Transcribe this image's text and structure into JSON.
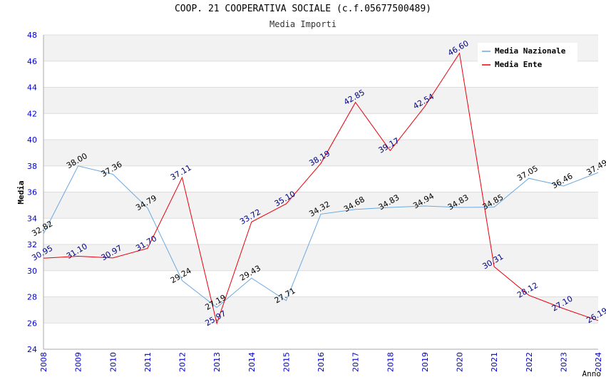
{
  "chart_data": {
    "type": "line",
    "title": "COOP. 21 COOPERATIVA SOCIALE (c.f.05677500489)",
    "subtitle": "Media Importi",
    "xlabel": "Anno",
    "ylabel": "Media",
    "ylim": [
      24,
      48
    ],
    "yticks": [
      "24",
      "26",
      "28",
      "30",
      "32",
      "34",
      "36",
      "38",
      "40",
      "42",
      "44",
      "46",
      "48"
    ],
    "grid": true,
    "legend_position": "top-right",
    "categories": [
      "2008",
      "2009",
      "2010",
      "2011",
      "2012",
      "2013",
      "2014",
      "2015",
      "2016",
      "2017",
      "2018",
      "2019",
      "2020",
      "2021",
      "2022",
      "2023",
      "2024"
    ],
    "series": [
      {
        "name": "Media Nazionale",
        "color": "#6aa8e0",
        "label_color": "#000000",
        "values": [
          32.82,
          38.0,
          37.36,
          34.79,
          29.24,
          27.19,
          29.43,
          27.71,
          34.32,
          34.68,
          34.83,
          34.94,
          34.83,
          34.85,
          37.05,
          36.46,
          37.49
        ],
        "labels": [
          "32.82",
          "38.00",
          "37.36",
          "34.79",
          "29.24",
          "27.19",
          "29.43",
          "27.71",
          "34.32",
          "34.68",
          "34.83",
          "34.94",
          "34.83",
          "34.85",
          "37.05",
          "36.46",
          "37.49"
        ]
      },
      {
        "name": "Media Ente",
        "color": "#e8000b",
        "label_color": "#000080",
        "values": [
          30.95,
          31.1,
          30.97,
          31.7,
          37.11,
          25.97,
          33.72,
          35.1,
          38.19,
          42.85,
          39.17,
          42.54,
          46.6,
          30.31,
          28.12,
          27.1,
          26.19
        ],
        "labels": [
          "30.95",
          "31.10",
          "30.97",
          "31.70",
          "37.11",
          "25.97",
          "33.72",
          "35.10",
          "38.19",
          "42.85",
          "39.17",
          "42.54",
          "46.60",
          "30.31",
          "28.12",
          "27.10",
          "26.19"
        ]
      }
    ]
  }
}
